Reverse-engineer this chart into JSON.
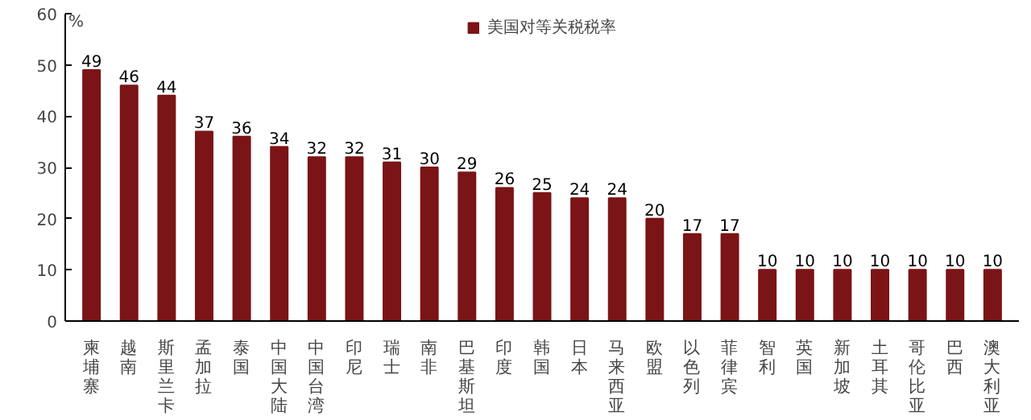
{
  "chart_data": {
    "type": "bar",
    "ylabel": "%",
    "categories": [
      "柬埔寨",
      "越南",
      "斯里兰卡",
      "孟加拉",
      "泰国",
      "中国大陆",
      "中国台湾",
      "印尼",
      "瑞士",
      "南非",
      "巴基斯坦",
      "印度",
      "韩国",
      "日本",
      "马来西亚",
      "欧盟",
      "以色列",
      "菲律宾",
      "智利",
      "英国",
      "新加坡",
      "土耳其",
      "哥伦比亚",
      "巴西",
      "澳大利亚"
    ],
    "series": [
      {
        "name": "美国对等关税税率",
        "color": "#7b1416",
        "values": [
          49,
          46,
          44,
          37,
          36,
          34,
          32,
          32,
          31,
          30,
          29,
          26,
          25,
          24,
          24,
          20,
          17,
          17,
          10,
          10,
          10,
          10,
          10,
          10,
          10
        ]
      }
    ],
    "ylim": [
      0,
      60
    ],
    "yticks": [
      0,
      10,
      20,
      30,
      40,
      50,
      60
    ],
    "data_labels": true,
    "legend": "top",
    "grid": false
  }
}
